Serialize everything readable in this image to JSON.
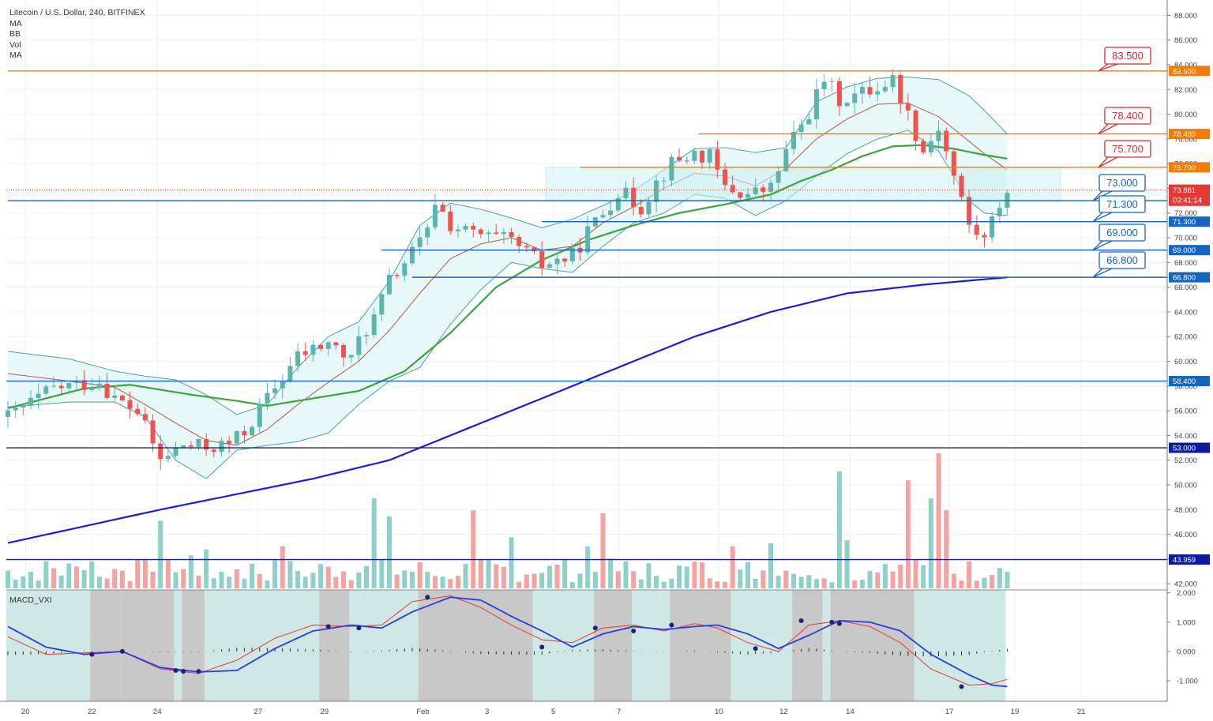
{
  "legend": {
    "title": "Litecoin / U.S. Dollar, 240, BITFINEX",
    "ind1": "MA",
    "ind2": "BB",
    "ind3": "Vol",
    "ind4": "MA"
  },
  "macd_label": "MACD_VXI",
  "colors": {
    "up": "#5bb5ac",
    "down": "#ef5350",
    "ma_green": "#3aa63a",
    "ma_blue": "#1d1dd6",
    "bb_line": "#4aa3a3",
    "bb_fill": "#e6f6f6",
    "orange": "#f57c00",
    "blue_line": "#1565c0",
    "callout_red": "#d32f2f",
    "callout_blue": "#1565c0",
    "macd_blue": "#2a3be0",
    "macd_red": "#e53935",
    "macd_bg_teal": "#cfe8e6",
    "macd_bg_gray": "#c8c8c8"
  },
  "chart_data": {
    "type": "candlestick",
    "symbol": "Litecoin / U.S. Dollar, 240, BITFINEX",
    "price_axis": {
      "ticks": [
        "88.000",
        "86.000",
        "84.000",
        "82.000",
        "80.000",
        "78.000",
        "76.000",
        "74.000",
        "72.000",
        "70.000",
        "68.000",
        "66.000",
        "64.000",
        "62.000",
        "60.000",
        "58.000",
        "56.000",
        "54.000",
        "52.000",
        "50.000",
        "48.000",
        "46.000",
        "44.000",
        "42.000"
      ],
      "range": [
        41.5,
        88.6
      ]
    },
    "macd_axis": {
      "ticks": [
        "2.000",
        "1.000",
        "0.000",
        "-1.000"
      ],
      "range": [
        -1.7,
        2.1
      ]
    },
    "time_axis": {
      "labels": [
        "20",
        "22",
        "24",
        "27",
        "29",
        "Feb",
        "3",
        "5",
        "7",
        "10",
        "12",
        "14",
        "17",
        "19",
        "21"
      ]
    },
    "horizontal_levels": [
      {
        "value": 83.5,
        "label": "83.500",
        "color": "orange",
        "callout": "83.500",
        "callout_color": "red"
      },
      {
        "value": 78.4,
        "label": "78.400",
        "color": "orange",
        "callout": "78.400",
        "callout_color": "red"
      },
      {
        "value": 75.7,
        "label": "75.700",
        "color": "orange",
        "callout": "75.700",
        "callout_color": "red"
      },
      {
        "value": 73.0,
        "label": "73.000",
        "color": "blue",
        "callout": "73.000",
        "callout_color": "blue"
      },
      {
        "value": 71.3,
        "label": "71.300",
        "color": "blue",
        "callout": "71.300",
        "callout_color": "blue"
      },
      {
        "value": 69.0,
        "label": "69.000",
        "color": "blue",
        "callout": "69.000",
        "callout_color": "blue"
      },
      {
        "value": 66.8,
        "label": "66.800",
        "color": "blue",
        "callout": "66.800",
        "callout_color": "blue"
      },
      {
        "value": 58.4,
        "label": "58.400",
        "color": "blue"
      },
      {
        "value": 53.0,
        "label": "53.000",
        "color": "navy"
      },
      {
        "value": 43.959,
        "label": "43.959",
        "color": "navy"
      }
    ],
    "last_price": {
      "value": 73.861,
      "label": "73.861",
      "countdown": "03:41:14"
    },
    "ohlc_anchors": [
      [
        0,
        55.5
      ],
      [
        6,
        57.8
      ],
      [
        12,
        58.4
      ],
      [
        14,
        57.0
      ],
      [
        17,
        55.9
      ],
      [
        20,
        52.0
      ],
      [
        23,
        53.2
      ],
      [
        26,
        53.0
      ],
      [
        29,
        53.3
      ],
      [
        31,
        54.3
      ],
      [
        34,
        57.0
      ],
      [
        38,
        60.4
      ],
      [
        42,
        61.5
      ],
      [
        45,
        60.0
      ],
      [
        46,
        61.8
      ],
      [
        48,
        63.5
      ],
      [
        50,
        66.5
      ],
      [
        52,
        68.0
      ],
      [
        55,
        70.4
      ],
      [
        56,
        73.0
      ],
      [
        58,
        71.0
      ],
      [
        60,
        70.5
      ],
      [
        63,
        70.0
      ],
      [
        66,
        69.7
      ],
      [
        70,
        67.8
      ],
      [
        74,
        68.5
      ],
      [
        76,
        70.5
      ],
      [
        78,
        72.0
      ],
      [
        80,
        73.8
      ],
      [
        83,
        72.5
      ],
      [
        85,
        74.5
      ],
      [
        87,
        76.0
      ],
      [
        90,
        76.8
      ],
      [
        92,
        76.5
      ],
      [
        94,
        74.0
      ],
      [
        97,
        73.5
      ],
      [
        100,
        74.0
      ],
      [
        102,
        77.0
      ],
      [
        105,
        80.2
      ],
      [
        107,
        82.8
      ],
      [
        109,
        81.2
      ],
      [
        111,
        81.5
      ],
      [
        114,
        82.2
      ],
      [
        116,
        82.8
      ],
      [
        118,
        80.0
      ],
      [
        120,
        77.0
      ],
      [
        122,
        79.0
      ],
      [
        124,
        75.0
      ],
      [
        126,
        71.0
      ],
      [
        128,
        69.8
      ],
      [
        130,
        72.8
      ],
      [
        131,
        73.86
      ]
    ],
    "moving_averages": [
      {
        "name": "MA (green)",
        "anchors": [
          [
            0,
            56.2
          ],
          [
            10,
            57.8
          ],
          [
            16,
            58.1
          ],
          [
            24,
            57.3
          ],
          [
            30,
            56.8
          ],
          [
            34,
            56.4
          ],
          [
            40,
            57.0
          ],
          [
            46,
            57.6
          ],
          [
            52,
            59.2
          ],
          [
            58,
            62.3
          ],
          [
            64,
            66.0
          ],
          [
            70,
            68.2
          ],
          [
            76,
            69.8
          ],
          [
            82,
            71.0
          ],
          [
            88,
            72.0
          ],
          [
            94,
            72.7
          ],
          [
            100,
            73.5
          ],
          [
            104,
            74.6
          ],
          [
            108,
            75.5
          ],
          [
            112,
            76.6
          ],
          [
            116,
            77.4
          ],
          [
            120,
            77.5
          ],
          [
            124,
            77.2
          ],
          [
            128,
            76.7
          ],
          [
            131,
            76.4
          ]
        ]
      },
      {
        "name": "MA (blue)",
        "anchors": [
          [
            0,
            45.3
          ],
          [
            20,
            48.0
          ],
          [
            40,
            50.5
          ],
          [
            50,
            52.0
          ],
          [
            60,
            54.5
          ],
          [
            70,
            57.0
          ],
          [
            80,
            59.5
          ],
          [
            90,
            62.0
          ],
          [
            100,
            64.0
          ],
          [
            110,
            65.5
          ],
          [
            120,
            66.2
          ],
          [
            131,
            66.8
          ]
        ]
      }
    ],
    "bollinger": {
      "mid": [
        [
          0,
          59.0
        ],
        [
          8,
          58.4
        ],
        [
          14,
          57.9
        ],
        [
          18,
          56.5
        ],
        [
          22,
          55.0
        ],
        [
          26,
          53.6
        ],
        [
          30,
          53.2
        ],
        [
          34,
          54.5
        ],
        [
          38,
          56.5
        ],
        [
          42,
          58.3
        ],
        [
          46,
          60.0
        ],
        [
          50,
          62.5
        ],
        [
          54,
          65.5
        ],
        [
          58,
          68.3
        ],
        [
          62,
          69.5
        ],
        [
          66,
          70.0
        ],
        [
          70,
          69.0
        ],
        [
          74,
          69.3
        ],
        [
          78,
          71.2
        ],
        [
          82,
          72.5
        ],
        [
          86,
          74.0
        ],
        [
          90,
          75.2
        ],
        [
          94,
          75.0
        ],
        [
          98,
          74.2
        ],
        [
          102,
          75.6
        ],
        [
          106,
          78.0
        ],
        [
          110,
          79.6
        ],
        [
          114,
          80.8
        ],
        [
          118,
          80.9
        ],
        [
          122,
          79.8
        ],
        [
          126,
          77.8
        ],
        [
          128,
          76.8
        ],
        [
          131,
          75.5
        ]
      ],
      "upper": [
        [
          0,
          60.8
        ],
        [
          8,
          60.2
        ],
        [
          14,
          59.2
        ],
        [
          18,
          58.8
        ],
        [
          22,
          58.5
        ],
        [
          26,
          57.3
        ],
        [
          30,
          55.7
        ],
        [
          34,
          56.5
        ],
        [
          38,
          59.5
        ],
        [
          42,
          62.0
        ],
        [
          46,
          63.2
        ],
        [
          50,
          66.5
        ],
        [
          54,
          71.0
        ],
        [
          58,
          72.8
        ],
        [
          62,
          72.3
        ],
        [
          66,
          71.6
        ],
        [
          70,
          70.8
        ],
        [
          74,
          71.5
        ],
        [
          78,
          72.6
        ],
        [
          82,
          73.8
        ],
        [
          86,
          75.5
        ],
        [
          90,
          77.2
        ],
        [
          94,
          77.3
        ],
        [
          98,
          76.9
        ],
        [
          102,
          77.3
        ],
        [
          106,
          81.0
        ],
        [
          110,
          82.2
        ],
        [
          114,
          82.9
        ],
        [
          118,
          83.0
        ],
        [
          122,
          82.8
        ],
        [
          126,
          81.5
        ],
        [
          128,
          80.3
        ],
        [
          131,
          78.4
        ]
      ],
      "lower": [
        [
          0,
          56.3
        ],
        [
          8,
          56.7
        ],
        [
          14,
          56.7
        ],
        [
          18,
          55.5
        ],
        [
          22,
          52.0
        ],
        [
          26,
          50.5
        ],
        [
          30,
          52.8
        ],
        [
          34,
          53.2
        ],
        [
          38,
          53.5
        ],
        [
          42,
          54.2
        ],
        [
          46,
          56.5
        ],
        [
          50,
          58.4
        ],
        [
          54,
          59.5
        ],
        [
          58,
          63.0
        ],
        [
          62,
          65.8
        ],
        [
          66,
          68.0
        ],
        [
          70,
          67.5
        ],
        [
          74,
          67.2
        ],
        [
          78,
          69.3
        ],
        [
          82,
          71.2
        ],
        [
          86,
          72.0
        ],
        [
          90,
          73.5
        ],
        [
          94,
          73.2
        ],
        [
          98,
          71.8
        ],
        [
          102,
          73.0
        ],
        [
          106,
          75.0
        ],
        [
          110,
          76.8
        ],
        [
          114,
          78.0
        ],
        [
          118,
          78.7
        ],
        [
          122,
          77.0
        ],
        [
          126,
          73.0
        ],
        [
          128,
          72.0
        ],
        [
          131,
          71.8
        ]
      ]
    },
    "volume": {
      "spikes": [
        [
          11,
          0.18
        ],
        [
          20,
          0.45
        ],
        [
          24,
          0.22
        ],
        [
          26,
          0.26
        ],
        [
          36,
          0.28
        ],
        [
          48,
          0.6
        ],
        [
          50,
          0.48
        ],
        [
          61,
          0.52
        ],
        [
          66,
          0.34
        ],
        [
          76,
          0.28
        ],
        [
          78,
          0.5
        ],
        [
          95,
          0.28
        ],
        [
          100,
          0.3
        ],
        [
          109,
          0.78
        ],
        [
          110,
          0.32
        ],
        [
          118,
          0.72
        ],
        [
          121,
          0.6
        ],
        [
          122,
          0.9
        ],
        [
          123,
          0.52
        ]
      ]
    },
    "macd": {
      "blue_anchors": [
        [
          0,
          0.85
        ],
        [
          5,
          0.15
        ],
        [
          10,
          -0.1
        ],
        [
          15,
          0.0
        ],
        [
          20,
          -0.55
        ],
        [
          25,
          -0.7
        ],
        [
          30,
          -0.65
        ],
        [
          35,
          0.1
        ],
        [
          40,
          0.7
        ],
        [
          45,
          0.9
        ],
        [
          49,
          0.8
        ],
        [
          53,
          1.35
        ],
        [
          58,
          1.85
        ],
        [
          62,
          1.75
        ],
        [
          66,
          1.2
        ],
        [
          70,
          0.7
        ],
        [
          74,
          0.15
        ],
        [
          78,
          0.6
        ],
        [
          82,
          0.85
        ],
        [
          86,
          0.75
        ],
        [
          90,
          0.85
        ],
        [
          93,
          0.9
        ],
        [
          97,
          0.6
        ],
        [
          101,
          0.1
        ],
        [
          105,
          0.55
        ],
        [
          109,
          1.05
        ],
        [
          113,
          1.0
        ],
        [
          117,
          0.7
        ],
        [
          121,
          -0.1
        ],
        [
          126,
          -0.8
        ],
        [
          129,
          -1.15
        ],
        [
          131,
          -1.2
        ]
      ],
      "red_anchors": [
        [
          0,
          0.5
        ],
        [
          5,
          -0.1
        ],
        [
          10,
          -0.05
        ],
        [
          15,
          0.0
        ],
        [
          20,
          -0.6
        ],
        [
          25,
          -0.75
        ],
        [
          30,
          -0.3
        ],
        [
          35,
          0.45
        ],
        [
          40,
          0.9
        ],
        [
          45,
          0.85
        ],
        [
          49,
          0.9
        ],
        [
          53,
          1.7
        ],
        [
          58,
          1.9
        ],
        [
          62,
          1.5
        ],
        [
          66,
          0.9
        ],
        [
          70,
          0.4
        ],
        [
          74,
          0.3
        ],
        [
          78,
          0.8
        ],
        [
          82,
          0.9
        ],
        [
          86,
          0.7
        ],
        [
          90,
          0.95
        ],
        [
          93,
          0.8
        ],
        [
          97,
          0.3
        ],
        [
          101,
          0.0
        ],
        [
          105,
          0.9
        ],
        [
          109,
          1.05
        ],
        [
          113,
          0.85
        ],
        [
          117,
          0.3
        ],
        [
          121,
          -0.6
        ],
        [
          126,
          -1.15
        ],
        [
          129,
          -1.1
        ],
        [
          131,
          -0.95
        ]
      ],
      "cross_points": [
        [
          11,
          -0.1
        ],
        [
          15,
          0.0
        ],
        [
          22,
          -0.65
        ],
        [
          23,
          -0.68
        ],
        [
          25,
          -0.68
        ],
        [
          42,
          0.85
        ],
        [
          46,
          0.8
        ],
        [
          55,
          1.85
        ],
        [
          70,
          0.15
        ],
        [
          77,
          0.8
        ],
        [
          82,
          0.7
        ],
        [
          87,
          0.9
        ],
        [
          98,
          0.1
        ],
        [
          104,
          1.05
        ],
        [
          108,
          1.0
        ],
        [
          109,
          0.95
        ],
        [
          125,
          -1.2
        ]
      ],
      "bg_segments": [
        [
          0,
          11,
          "teal"
        ],
        [
          11,
          15,
          "gray"
        ],
        [
          15,
          22,
          "gray"
        ],
        [
          22,
          23,
          "teal"
        ],
        [
          23,
          26,
          "gray"
        ],
        [
          26,
          41,
          "teal"
        ],
        [
          41,
          45,
          "gray"
        ],
        [
          45,
          54,
          "teal"
        ],
        [
          54,
          69,
          "gray"
        ],
        [
          69,
          77,
          "teal"
        ],
        [
          77,
          82,
          "gray"
        ],
        [
          82,
          87,
          "teal"
        ],
        [
          87,
          95,
          "gray"
        ],
        [
          95,
          103,
          "teal"
        ],
        [
          103,
          107,
          "gray"
        ],
        [
          107,
          108,
          "teal"
        ],
        [
          108,
          119,
          "gray"
        ],
        [
          119,
          131,
          "teal"
        ]
      ]
    }
  }
}
